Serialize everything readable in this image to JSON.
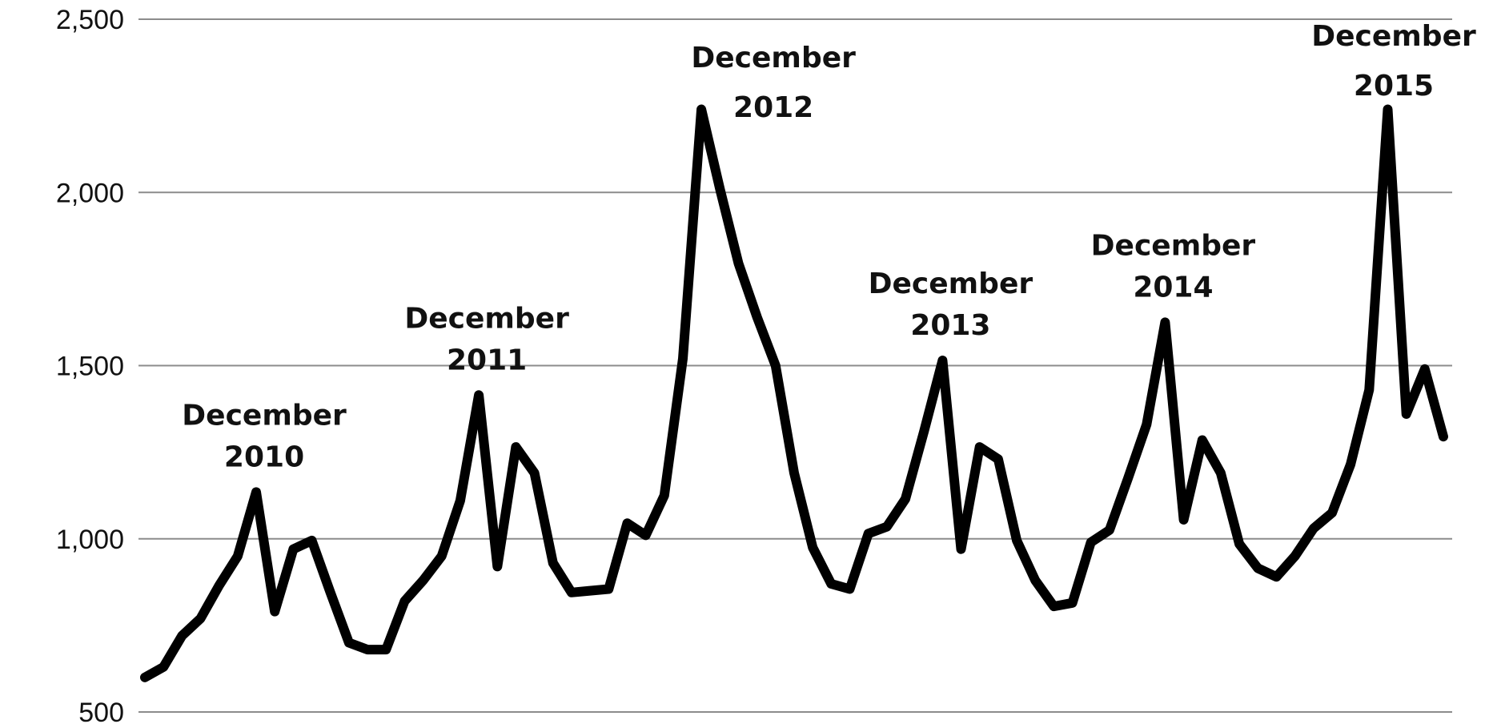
{
  "chart_data": {
    "type": "line",
    "title": "",
    "xlabel": "",
    "ylabel": "",
    "ylim": [
      500,
      2500
    ],
    "yticks": [
      {
        "value": 500,
        "label": "500"
      },
      {
        "value": 1000,
        "label": "1,000"
      },
      {
        "value": 1500,
        "label": "1,500"
      },
      {
        "value": 2000,
        "label": "2,000"
      },
      {
        "value": 2500,
        "label": "2,500"
      }
    ],
    "grid": true,
    "legend": "none",
    "line_color": "#000000",
    "series": [
      {
        "values": [
          600,
          630,
          720,
          770,
          865,
          950,
          1135,
          790,
          970,
          995,
          845,
          700,
          680,
          680,
          820,
          880,
          950,
          1110,
          1415,
          920,
          1265,
          1190,
          930,
          845,
          850,
          855,
          1045,
          1010,
          1125,
          1520,
          2240,
          2010,
          1795,
          1640,
          1500,
          1190,
          975,
          870,
          855,
          1015,
          1035,
          1115,
          1310,
          1515,
          970,
          1265,
          1230,
          995,
          880,
          805,
          815,
          990,
          1025,
          1175,
          1330,
          1625,
          1055,
          1285,
          1190,
          985,
          915,
          890,
          950,
          1030,
          1075,
          1215,
          1430,
          2240,
          1360,
          1490,
          1295
        ]
      }
    ],
    "annotations": [
      {
        "line1": "December",
        "line2": "2010",
        "index": 6
      },
      {
        "line1": "December",
        "line2": "2011",
        "index": 18
      },
      {
        "line1": "December",
        "line2": "2012",
        "index": 30
      },
      {
        "line1": "December",
        "line2": "2013",
        "index": 43
      },
      {
        "line1": "December",
        "line2": "2014",
        "index": 55
      },
      {
        "line1": "December",
        "line2": "2015",
        "index": 67
      }
    ]
  }
}
